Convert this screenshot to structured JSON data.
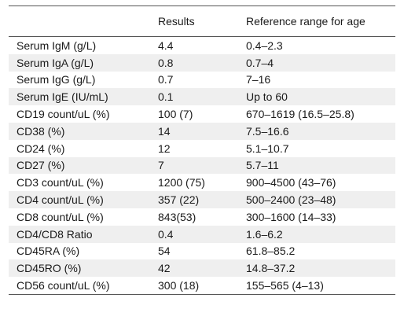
{
  "table": {
    "headers": [
      "",
      "Results",
      "Reference range for age"
    ],
    "rows": [
      [
        "Serum IgM (g/L)",
        "4.4",
        "0.4–2.3"
      ],
      [
        "Serum IgA (g/L)",
        "0.8",
        "0.7–4"
      ],
      [
        "Serum IgG (g/L)",
        "0.7",
        "7–16"
      ],
      [
        "Serum IgE (IU/mL)",
        "0.1",
        "Up to 60"
      ],
      [
        "CD19 count/uL (%)",
        "100 (7)",
        "670–1619 (16.5–25.8)"
      ],
      [
        "CD38 (%)",
        "14",
        "7.5–16.6"
      ],
      [
        "CD24 (%)",
        "12",
        "5.1–10.7"
      ],
      [
        "CD27 (%)",
        "7",
        "5.7–11"
      ],
      [
        "CD3 count/uL (%)",
        "1200 (75)",
        "900–4500 (43–76)"
      ],
      [
        "CD4 count/uL (%)",
        "357 (22)",
        "500–2400 (23–48)"
      ],
      [
        "CD8 count/uL (%)",
        "843(53)",
        "300–1600 (14–33)"
      ],
      [
        "CD4/CD8 Ratio",
        "0.4",
        "1.6–6.2"
      ],
      [
        "CD45RA (%)",
        "54",
        "61.8–85.2"
      ],
      [
        "CD45RO (%)",
        "42",
        "14.8–37.2"
      ],
      [
        "CD56 count/uL (%)",
        "300 (18)",
        "155–565 (4–13)"
      ]
    ]
  }
}
